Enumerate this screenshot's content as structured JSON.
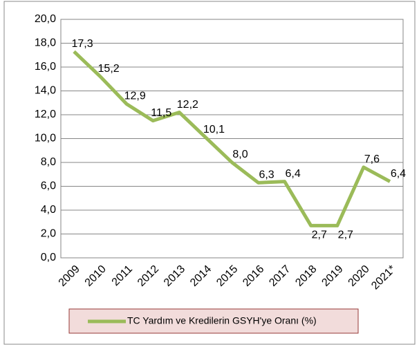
{
  "chart_data": {
    "type": "line",
    "categories": [
      "2009",
      "2010",
      "2011",
      "2012",
      "2013",
      "2014",
      "2015",
      "2016",
      "2017",
      "2018",
      "2019",
      "2020",
      "2021*"
    ],
    "series": [
      {
        "name": "TC Yardım ve Kredilerin GSYH'ye Oranı (%)",
        "color": "#9bbb59",
        "values": [
          17.3,
          15.2,
          12.9,
          11.5,
          12.2,
          10.1,
          8.0,
          6.3,
          6.4,
          2.7,
          2.7,
          7.6,
          6.4
        ],
        "value_labels": [
          "17,3",
          "15,2",
          "12,9",
          "11,5",
          "12,2",
          "10,1",
          "8,0",
          "6,3",
          "6,4",
          "2,7",
          "2,7",
          "7,6",
          "6,4"
        ]
      }
    ],
    "ylim": [
      0,
      20
    ],
    "yticks": [
      {
        "value": 0,
        "label": "0,0"
      },
      {
        "value": 2,
        "label": "2,0"
      },
      {
        "value": 4,
        "label": "4,0"
      },
      {
        "value": 6,
        "label": "6,0"
      },
      {
        "value": 8,
        "label": "8,0"
      },
      {
        "value": 10,
        "label": "10,0"
      },
      {
        "value": 12,
        "label": "12,0"
      },
      {
        "value": 14,
        "label": "14,0"
      },
      {
        "value": 16,
        "label": "16,0"
      },
      {
        "value": 18,
        "label": "18,0"
      },
      {
        "value": 20,
        "label": "20,0"
      }
    ],
    "grid": true,
    "legend": "bottom"
  }
}
